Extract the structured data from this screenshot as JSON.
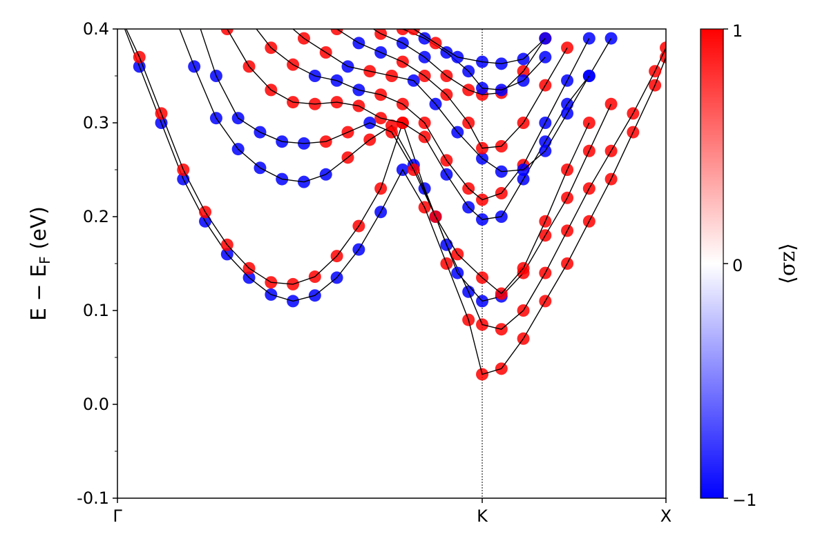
{
  "chart_data": {
    "type": "scatter",
    "title": "",
    "xlabel": "",
    "ylabel": "E − E",
    "ylabel_sub": "F",
    "ylabel_unit": "(eV)",
    "ylim": [
      -0.1,
      0.4
    ],
    "xlim": [
      0,
      1
    ],
    "yticks": [
      -0.1,
      0.0,
      0.1,
      0.2,
      0.3,
      0.4
    ],
    "ytick_labels": [
      "-0.1",
      "0.0",
      "0.1",
      "0.2",
      "0.3",
      "0.4"
    ],
    "xticks": [
      {
        "x": 0,
        "label": "Γ"
      },
      {
        "x": 0.665,
        "label": "K"
      },
      {
        "x": 1,
        "label": "X"
      }
    ],
    "kpoint_line_x": 0.665,
    "colorbar": {
      "label": "⟨σz⟩",
      "min": -1,
      "max": 1,
      "ticks": [
        {
          "v": 1,
          "label": "1"
        },
        {
          "v": 0,
          "label": "0"
        },
        {
          "v": -1,
          "label": "−1"
        }
      ],
      "colors": [
        "#0000ff",
        "#ffffff",
        "#ff0000"
      ]
    },
    "series": [
      {
        "x": [
          0,
          0.04,
          0.08,
          0.12,
          0.16,
          0.2,
          0.24,
          0.28,
          0.32,
          0.36,
          0.4,
          0.44,
          0.48,
          0.52,
          0.56,
          0.6,
          0.64,
          0.665,
          0.7,
          0.74,
          0.78,
          0.82,
          0.86,
          0.9,
          0.94,
          0.98,
          1
        ],
        "y": [
          0.42,
          0.36,
          0.3,
          0.24,
          0.195,
          0.16,
          0.135,
          0.117,
          0.11,
          0.116,
          0.135,
          0.165,
          0.205,
          0.25,
          0.21,
          0.15,
          0.09,
          0.032,
          0.038,
          0.07,
          0.11,
          0.15,
          0.195,
          0.24,
          0.29,
          0.34,
          0.37
        ],
        "spin": [
          -1,
          -1,
          -1,
          -1,
          -1,
          -1,
          -1,
          -1,
          -1,
          -1,
          -1,
          -1,
          -1,
          -1,
          1,
          1,
          1,
          1,
          1,
          1,
          1,
          1,
          1,
          1,
          1,
          1,
          1
        ]
      },
      {
        "x": [
          0,
          0.04,
          0.08,
          0.12,
          0.16,
          0.2,
          0.24,
          0.28,
          0.32,
          0.36,
          0.4,
          0.44,
          0.48,
          0.52,
          0.56,
          0.6,
          0.64,
          0.665,
          0.7,
          0.74,
          0.78,
          0.82,
          0.86,
          0.9,
          0.94,
          0.98,
          1
        ],
        "y": [
          0.42,
          0.37,
          0.31,
          0.25,
          0.205,
          0.17,
          0.145,
          0.13,
          0.128,
          0.136,
          0.158,
          0.19,
          0.23,
          0.3,
          0.23,
          0.17,
          0.12,
          0.085,
          0.08,
          0.1,
          0.14,
          0.185,
          0.23,
          0.27,
          0.31,
          0.355,
          0.38
        ],
        "spin": [
          1,
          1,
          1,
          1,
          1,
          1,
          1,
          1,
          1,
          1,
          1,
          1,
          1,
          1,
          -1,
          -1,
          -1,
          1,
          1,
          1,
          1,
          1,
          1,
          1,
          1,
          1,
          1
        ]
      },
      {
        "x": [
          0.1,
          0.14,
          0.18,
          0.22,
          0.26,
          0.3,
          0.34,
          0.38,
          0.42,
          0.46,
          0.5,
          0.54,
          0.58,
          0.62,
          0.665,
          0.7,
          0.74,
          0.78,
          0.82,
          0.86,
          0.9
        ],
        "y": [
          0.42,
          0.36,
          0.305,
          0.272,
          0.252,
          0.24,
          0.237,
          0.245,
          0.263,
          0.282,
          0.297,
          0.255,
          0.2,
          0.14,
          0.11,
          0.115,
          0.14,
          0.18,
          0.22,
          0.27,
          0.32
        ],
        "spin": [
          -1,
          -1,
          -1,
          -1,
          -1,
          -1,
          -1,
          -1,
          1,
          1,
          1,
          -1,
          -1,
          -1,
          -1,
          -1,
          1,
          1,
          1,
          1,
          1
        ]
      },
      {
        "x": [
          0.14,
          0.18,
          0.22,
          0.26,
          0.3,
          0.34,
          0.38,
          0.42,
          0.46,
          0.5,
          0.54,
          0.58,
          0.62,
          0.665,
          0.7,
          0.74,
          0.78,
          0.82,
          0.86
        ],
        "y": [
          0.42,
          0.35,
          0.305,
          0.29,
          0.28,
          0.278,
          0.28,
          0.29,
          0.3,
          0.29,
          0.25,
          0.2,
          0.16,
          0.135,
          0.118,
          0.145,
          0.195,
          0.25,
          0.3
        ],
        "spin": [
          1,
          -1,
          -1,
          -1,
          -1,
          -1,
          1,
          1,
          -1,
          1,
          1,
          1,
          1,
          1,
          1,
          1,
          1,
          1,
          1
        ]
      },
      {
        "x": [
          0.2,
          0.24,
          0.28,
          0.32,
          0.36,
          0.4,
          0.44,
          0.48,
          0.52,
          0.56,
          0.6,
          0.64,
          0.665,
          0.7,
          0.74,
          0.78,
          0.82,
          0.86,
          0.9
        ],
        "y": [
          0.4,
          0.36,
          0.335,
          0.322,
          0.32,
          0.322,
          0.318,
          0.305,
          0.3,
          0.285,
          0.245,
          0.21,
          0.197,
          0.2,
          0.24,
          0.28,
          0.32,
          0.35,
          0.39
        ],
        "spin": [
          1,
          1,
          1,
          1,
          1,
          1,
          1,
          1,
          1,
          1,
          -1,
          -1,
          -1,
          -1,
          -1,
          -1,
          -1,
          -1,
          -1
        ]
      },
      {
        "x": [
          0.24,
          0.28,
          0.32,
          0.36,
          0.4,
          0.44,
          0.48,
          0.52,
          0.56,
          0.6,
          0.64,
          0.665,
          0.7,
          0.74,
          0.78,
          0.82,
          0.86
        ],
        "y": [
          0.41,
          0.38,
          0.362,
          0.35,
          0.345,
          0.335,
          0.33,
          0.32,
          0.3,
          0.26,
          0.23,
          0.218,
          0.225,
          0.255,
          0.3,
          0.345,
          0.39
        ],
        "spin": [
          1,
          1,
          1,
          -1,
          -1,
          -1,
          1,
          1,
          1,
          1,
          1,
          1,
          1,
          1,
          -1,
          -1,
          -1
        ]
      },
      {
        "x": [
          0.3,
          0.34,
          0.38,
          0.42,
          0.46,
          0.5,
          0.54,
          0.58,
          0.62,
          0.665,
          0.7,
          0.74,
          0.78,
          0.82,
          0.86
        ],
        "y": [
          0.41,
          0.39,
          0.375,
          0.36,
          0.355,
          0.35,
          0.345,
          0.32,
          0.29,
          0.262,
          0.248,
          0.25,
          0.27,
          0.31,
          0.35
        ],
        "spin": [
          1,
          1,
          1,
          -1,
          1,
          1,
          -1,
          -1,
          -1,
          -1,
          -1,
          -1,
          -1,
          -1,
          -1
        ]
      },
      {
        "x": [
          0.36,
          0.4,
          0.44,
          0.48,
          0.52,
          0.56,
          0.6,
          0.64,
          0.665,
          0.7,
          0.74,
          0.78,
          0.82
        ],
        "y": [
          0.41,
          0.4,
          0.385,
          0.375,
          0.365,
          0.35,
          0.33,
          0.3,
          0.273,
          0.275,
          0.3,
          0.34,
          0.38
        ],
        "spin": [
          1,
          1,
          -1,
          -1,
          1,
          1,
          1,
          1,
          1,
          1,
          1,
          1,
          1
        ]
      },
      {
        "x": [
          0.44,
          0.48,
          0.52,
          0.56,
          0.6,
          0.64,
          0.665,
          0.7,
          0.74,
          0.78
        ],
        "y": [
          0.41,
          0.395,
          0.385,
          0.37,
          0.35,
          0.335,
          0.33,
          0.332,
          0.355,
          0.39
        ],
        "spin": [
          1,
          1,
          -1,
          -1,
          1,
          1,
          1,
          1,
          1,
          1
        ]
      },
      {
        "x": [
          0.48,
          0.52,
          0.56,
          0.6,
          0.64,
          0.665,
          0.7,
          0.74,
          0.78
        ],
        "y": [
          0.41,
          0.4,
          0.39,
          0.375,
          0.355,
          0.337,
          0.335,
          0.345,
          0.37
        ],
        "spin": [
          1,
          1,
          -1,
          -1,
          -1,
          -1,
          -1,
          -1,
          -1
        ]
      },
      {
        "x": [
          0.5,
          0.54,
          0.58,
          0.62,
          0.665,
          0.7,
          0.74,
          0.78
        ],
        "y": [
          0.41,
          0.4,
          0.385,
          0.37,
          0.365,
          0.363,
          0.368,
          0.39
        ],
        "spin": [
          1,
          1,
          1,
          -1,
          -1,
          -1,
          -1,
          -1
        ]
      }
    ]
  }
}
